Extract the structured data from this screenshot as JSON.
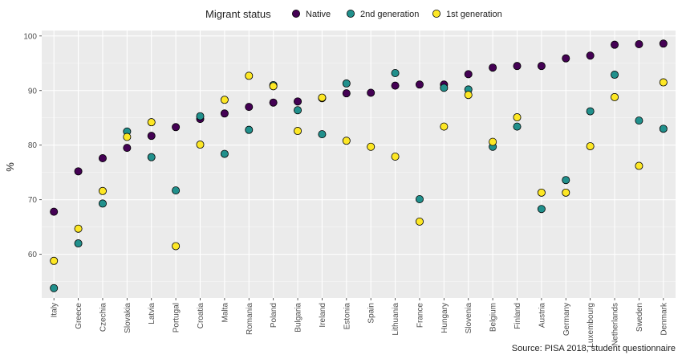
{
  "chart_data": {
    "type": "scatter",
    "ylabel": "%",
    "ylim": [
      52,
      101
    ],
    "yticks": [
      60,
      70,
      80,
      90,
      100
    ],
    "legend": {
      "title": "Migrant status",
      "position": "top"
    },
    "caption": "Source: PISA 2018, student questionnaire",
    "grid": true,
    "categories": [
      "Italy",
      "Greece",
      "Czechia",
      "Slovakia",
      "Latvia",
      "Portugal",
      "Croatia",
      "Malta",
      "Romania",
      "Poland",
      "Bulgaria",
      "Ireland",
      "Estonia",
      "Spain",
      "Lithuania",
      "France",
      "Hungary",
      "Slovenia",
      "Belgium",
      "Finland",
      "Austria",
      "Germany",
      "Luxembourg",
      "Netherlands",
      "Sweden",
      "Denmark"
    ],
    "series": [
      {
        "name": "Native",
        "color": "#440154",
        "values": [
          67.8,
          75.2,
          77.6,
          79.5,
          81.7,
          83.3,
          84.8,
          85.8,
          87.0,
          87.8,
          88.0,
          88.6,
          89.5,
          89.6,
          90.9,
          91.1,
          91.1,
          93.0,
          94.2,
          94.5,
          94.5,
          95.9,
          96.4,
          98.4,
          98.5,
          98.6
        ]
      },
      {
        "name": "2nd generation",
        "color": "#21908C",
        "values": [
          53.8,
          62.0,
          69.3,
          82.5,
          77.8,
          71.7,
          85.3,
          78.4,
          82.8,
          91.0,
          86.4,
          82.0,
          91.3,
          null,
          93.2,
          70.1,
          90.5,
          90.2,
          79.7,
          83.4,
          68.3,
          73.6,
          86.2,
          92.9,
          84.5,
          83.0
        ]
      },
      {
        "name": "1st generation",
        "color": "#FDE725",
        "values": [
          58.8,
          64.7,
          71.6,
          81.5,
          84.2,
          61.5,
          80.1,
          88.3,
          92.7,
          90.8,
          82.6,
          88.7,
          80.8,
          79.7,
          77.9,
          66.0,
          83.4,
          89.2,
          80.6,
          85.1,
          71.3,
          71.3,
          79.8,
          88.8,
          76.2,
          91.5
        ]
      }
    ]
  }
}
